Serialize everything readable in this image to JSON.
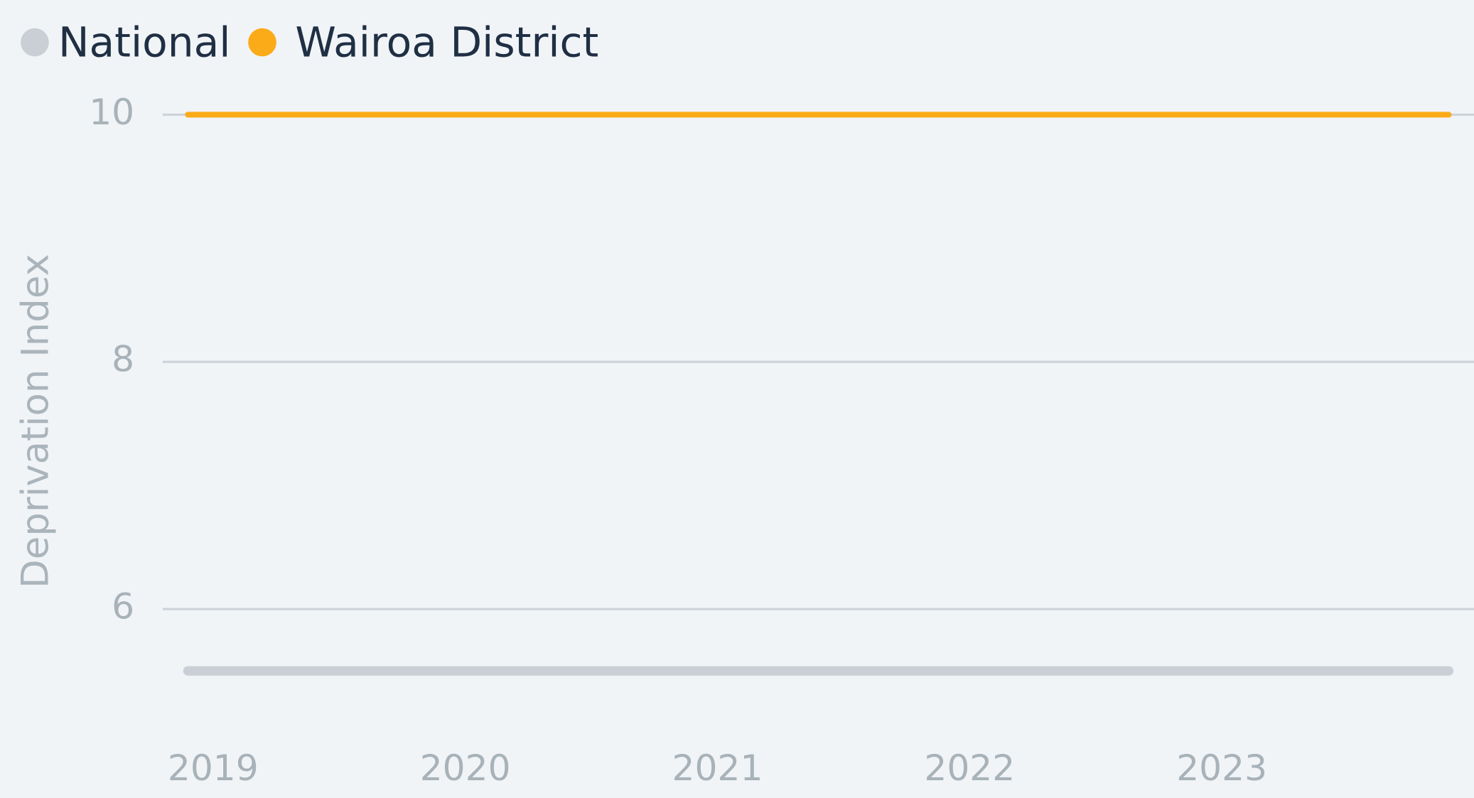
{
  "chart_data": {
    "type": "line",
    "y_label": "Deprivation Index",
    "x": [
      2018.9,
      2023.9
    ],
    "xlim": [
      2018.8,
      2024
    ],
    "xticks": [
      2019,
      2020,
      2021,
      2022,
      2023
    ],
    "ylim": [
      5,
      10.2
    ],
    "yticks": [
      6,
      8,
      10
    ],
    "grid": true,
    "legend": "top-left",
    "series": [
      {
        "name": "National",
        "color": "#c9cfd4",
        "values": [
          5.5,
          5.5
        ]
      },
      {
        "name": "Wairoa District",
        "color": "#fbab18",
        "values": [
          10,
          10
        ]
      }
    ]
  }
}
